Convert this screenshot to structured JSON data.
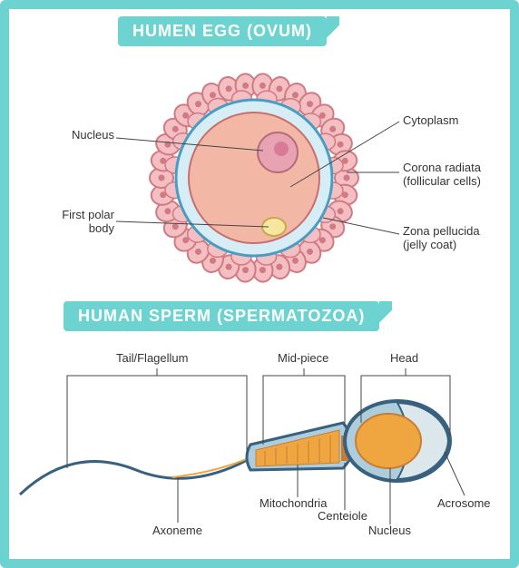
{
  "titles": {
    "egg": "HUMEN EGG (OVUM)",
    "sperm": "HUMAN SPERM (SPERMATOZOA)"
  },
  "egg": {
    "labels": {
      "nucleus": "Nucleus",
      "first_polar": "First polar\nbody",
      "cytoplasm": "Cytoplasm",
      "corona": "Corona radiata\n(follicular cells)",
      "zona": "Zona pellucida\n(jelly coat)"
    },
    "colors": {
      "follicle_fill": "#f4bfc3",
      "follicle_stroke": "#d07a82",
      "zona_fill": "#d7edf5",
      "zona_stroke": "#4a9cc2",
      "cyto_fill": "#f3b7a5",
      "cyto_stroke": "#c76f6e",
      "nucleus_fill": "#e8a3b2",
      "nucleus_stroke": "#b86a7e",
      "nucleus_core": "#d97a96",
      "polar_fill": "#f6e6a0",
      "polar_stroke": "#c7a94a"
    }
  },
  "sperm": {
    "labels": {
      "tail": "Tail/Flagellum",
      "midpiece": "Mid-piece",
      "head": "Head",
      "mitochondria": "Mitochondria",
      "centriole": "Centeiole",
      "nucleus": "Nucleus",
      "acrosome": "Acrosome",
      "axoneme": "Axoneme"
    },
    "colors": {
      "membrane": "#37617e",
      "membrane_fill": "#aecddc",
      "mito": "#f0a640",
      "core": "#f0a640",
      "nucleus": "#c77e34",
      "acro": "#dce7ec",
      "tail": "#37617e"
    }
  }
}
